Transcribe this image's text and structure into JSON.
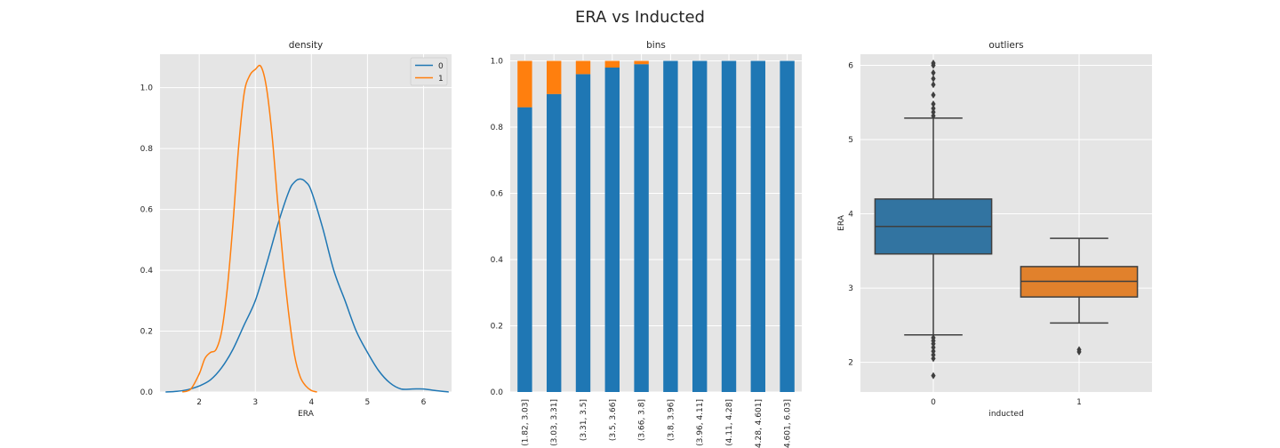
{
  "figure": {
    "title": "ERA vs Inducted"
  },
  "colors": {
    "series0": "#1f77b4",
    "series1": "#ff7f0e",
    "panel_bg": "#e5e5e5",
    "grid": "#ffffff",
    "box0": "#3274a1",
    "box1": "#e1812c",
    "box_line": "#3f3f3f"
  },
  "chart_data": [
    {
      "type": "line",
      "title": "density",
      "xlabel": "ERA",
      "ylabel": "",
      "xlim": [
        1.3,
        6.5
      ],
      "ylim": [
        0,
        1.11
      ],
      "xticks": [
        2,
        3,
        4,
        5,
        6
      ],
      "yticks": [
        0.0,
        0.2,
        0.4,
        0.6,
        0.8,
        1.0
      ],
      "ytick_labels": [
        "0.0",
        "0.2",
        "0.4",
        "0.6",
        "0.8",
        "1.0"
      ],
      "legend": {
        "position": "top-right",
        "entries": [
          "0",
          "1"
        ]
      },
      "series": [
        {
          "name": "0",
          "color": "#1f77b4",
          "x": [
            1.4,
            1.6,
            1.8,
            2.0,
            2.2,
            2.4,
            2.6,
            2.8,
            3.0,
            3.2,
            3.4,
            3.6,
            3.7,
            3.8,
            3.9,
            4.0,
            4.2,
            4.4,
            4.6,
            4.8,
            5.0,
            5.2,
            5.4,
            5.6,
            5.8,
            6.0,
            6.2,
            6.45
          ],
          "y": [
            0.0,
            0.002,
            0.008,
            0.02,
            0.04,
            0.08,
            0.14,
            0.22,
            0.3,
            0.42,
            0.55,
            0.66,
            0.69,
            0.7,
            0.69,
            0.66,
            0.54,
            0.4,
            0.3,
            0.2,
            0.13,
            0.07,
            0.03,
            0.01,
            0.01,
            0.01,
            0.005,
            0.0
          ]
        },
        {
          "name": "1",
          "color": "#ff7f0e",
          "x": [
            1.7,
            1.85,
            2.0,
            2.1,
            2.2,
            2.3,
            2.4,
            2.5,
            2.6,
            2.7,
            2.8,
            2.9,
            3.0,
            3.1,
            3.2,
            3.3,
            3.4,
            3.5,
            3.6,
            3.7,
            3.8,
            3.9,
            4.0,
            4.1
          ],
          "y": [
            0.0,
            0.01,
            0.06,
            0.11,
            0.13,
            0.14,
            0.2,
            0.34,
            0.55,
            0.8,
            0.98,
            1.04,
            1.06,
            1.07,
            1.0,
            0.84,
            0.62,
            0.42,
            0.25,
            0.12,
            0.05,
            0.02,
            0.005,
            0.0
          ]
        }
      ]
    },
    {
      "type": "bar",
      "stacked": true,
      "title": "bins",
      "xlabel": "",
      "ylabel": "",
      "ylim": [
        0,
        1.02
      ],
      "yticks": [
        0.0,
        0.2,
        0.4,
        0.6,
        0.8,
        1.0
      ],
      "ytick_labels": [
        "0.0",
        "0.2",
        "0.4",
        "0.6",
        "0.8",
        "1.0"
      ],
      "categories": [
        "(1.82, 3.03]",
        "(3.03, 3.31]",
        "(3.31, 3.5]",
        "(3.5, 3.66]",
        "(3.66, 3.8]",
        "(3.8, 3.96]",
        "(3.96, 4.11]",
        "(4.11, 4.28]",
        "(4.28, 4.601]",
        "(4.601, 6.03]"
      ],
      "series": [
        {
          "name": "0",
          "color": "#1f77b4",
          "values": [
            0.86,
            0.9,
            0.96,
            0.98,
            0.99,
            1.0,
            1.0,
            1.0,
            1.0,
            1.0
          ]
        },
        {
          "name": "1",
          "color": "#ff7f0e",
          "values": [
            0.14,
            0.1,
            0.04,
            0.02,
            0.01,
            0.0,
            0.0,
            0.0,
            0.0,
            0.0
          ]
        }
      ]
    },
    {
      "type": "box",
      "title": "outliers",
      "xlabel": "inducted",
      "ylabel": "ERA",
      "ylim": [
        1.6,
        6.15
      ],
      "yticks": [
        2,
        3,
        4,
        5,
        6
      ],
      "categories": [
        "0",
        "1"
      ],
      "boxes": [
        {
          "name": "0",
          "color": "#3274a1",
          "q1": 3.46,
          "median": 3.83,
          "q3": 4.2,
          "whisker_low": 2.37,
          "whisker_high": 5.29,
          "outliers": [
            6.03,
            6.0,
            5.9,
            5.82,
            5.74,
            5.6,
            5.48,
            5.42,
            5.37,
            5.32,
            2.33,
            2.29,
            2.25,
            2.2,
            2.15,
            2.1,
            2.05,
            1.82
          ]
        },
        {
          "name": "1",
          "color": "#e1812c",
          "q1": 2.88,
          "median": 3.09,
          "q3": 3.29,
          "whisker_low": 2.53,
          "whisker_high": 3.67,
          "outliers": [
            2.17,
            2.14
          ]
        }
      ]
    }
  ]
}
